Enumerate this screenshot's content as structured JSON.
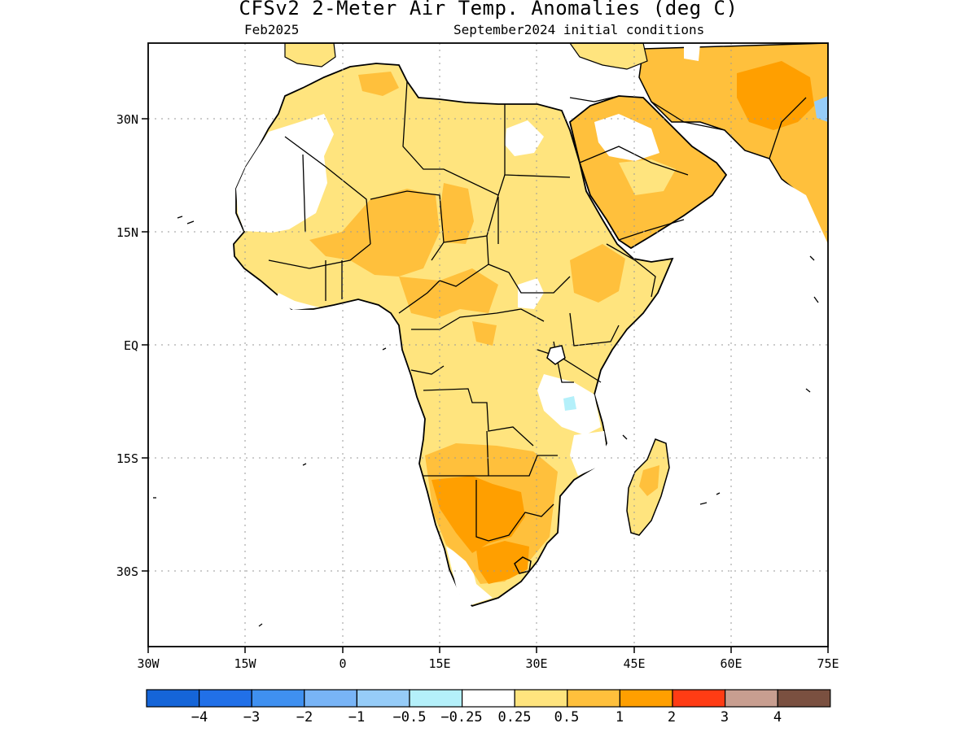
{
  "header": {
    "title": "CFSv2 2-Meter Air Temp. Anomalies (deg C)",
    "valid_month": "Feb2025",
    "init": "September2024 initial conditions"
  },
  "map": {
    "lon_range": [
      -30,
      75
    ],
    "lat_range": [
      -40,
      40
    ],
    "x_ticks": [
      "30W",
      "15W",
      "0",
      "15E",
      "30E",
      "45E",
      "60E",
      "75E"
    ],
    "y_ticks": [
      "30N",
      "15N",
      "EQ",
      "15S",
      "30S"
    ],
    "grid": "dotted"
  },
  "colorbar": {
    "colors": [
      "#1565d8",
      "#2170e8",
      "#3f90f0",
      "#78b4f6",
      "#96ccf8",
      "#b4f0fa",
      "#ffffff",
      "#ffe47e",
      "#ffc03c",
      "#ff9f00",
      "#ff3c14",
      "#c89e90",
      "#7a5040"
    ],
    "labels": [
      "−4",
      "−3",
      "−2",
      "−1",
      "−0.5",
      "−0.25",
      "0.25",
      "0.5",
      "1",
      "2",
      "3",
      "4"
    ]
  }
}
